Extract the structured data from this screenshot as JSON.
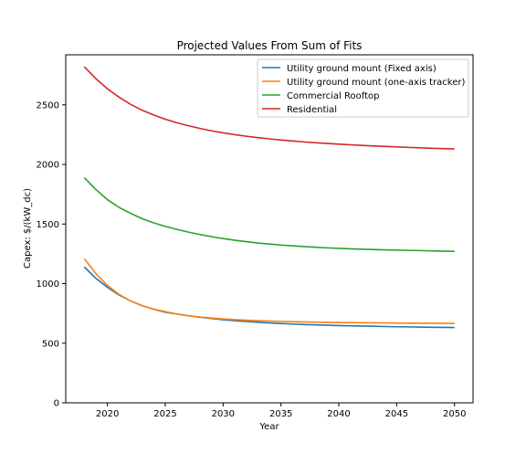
{
  "chart_data": {
    "type": "line",
    "title": "Projected Values From Sum of Fits",
    "xlabel": "Year",
    "ylabel": "Capex: $/(kW_dc)",
    "xlim": [
      2016.4,
      2051.6
    ],
    "ylim": [
      0,
      2920
    ],
    "xticks": [
      2020,
      2025,
      2030,
      2035,
      2040,
      2045,
      2050
    ],
    "yticks": [
      0,
      500,
      1000,
      1500,
      2000,
      2500
    ],
    "grid": false,
    "legend_position": "top-right",
    "x": [
      2018,
      2019,
      2020,
      2021,
      2022,
      2023,
      2024,
      2025,
      2026,
      2027,
      2028,
      2029,
      2030,
      2031,
      2032,
      2033,
      2034,
      2035,
      2036,
      2037,
      2038,
      2039,
      2040,
      2041,
      2042,
      2043,
      2044,
      2045,
      2046,
      2047,
      2048,
      2049,
      2050
    ],
    "series": [
      {
        "name": "Utility ground mount (Fixed axis)",
        "color": "#1f77b4",
        "values": [
          1140,
          1045,
          970,
          905,
          855,
          815,
          785,
          760,
          745,
          730,
          718,
          707,
          697,
          689,
          682,
          676,
          670,
          665,
          661,
          657,
          654,
          651,
          648,
          646,
          644,
          642,
          640,
          638,
          637,
          636,
          634,
          633,
          632
        ]
      },
      {
        "name": "Utility ground mount (one-axis tracker)",
        "color": "#ff7f0e",
        "values": [
          1210,
          1085,
          985,
          910,
          855,
          815,
          785,
          765,
          745,
          730,
          720,
          711,
          704,
          698,
          693,
          689,
          686,
          683,
          681,
          679,
          677,
          675,
          674,
          673,
          672,
          671,
          670,
          669,
          668,
          668,
          667,
          667,
          666
        ]
      },
      {
        "name": "Commercial Rooftop",
        "color": "#2ca02c",
        "values": [
          1890,
          1790,
          1705,
          1640,
          1590,
          1545,
          1510,
          1480,
          1455,
          1432,
          1412,
          1394,
          1378,
          1364,
          1352,
          1341,
          1332,
          1324,
          1317,
          1311,
          1305,
          1300,
          1296,
          1292,
          1289,
          1286,
          1283,
          1281,
          1279,
          1277,
          1275,
          1273,
          1271
        ]
      },
      {
        "name": "Residential",
        "color": "#d62728",
        "values": [
          2820,
          2720,
          2635,
          2565,
          2505,
          2455,
          2415,
          2380,
          2350,
          2325,
          2302,
          2282,
          2265,
          2250,
          2237,
          2225,
          2215,
          2205,
          2197,
          2189,
          2182,
          2176,
          2170,
          2165,
          2160,
          2155,
          2151,
          2147,
          2143,
          2140,
          2136,
          2133,
          2130
        ]
      }
    ]
  }
}
